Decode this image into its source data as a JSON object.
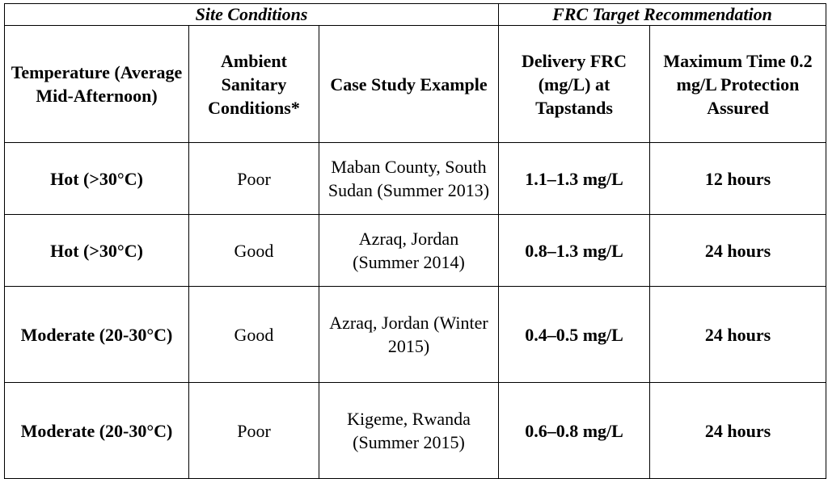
{
  "table": {
    "group_headers": {
      "site": "Site Conditions",
      "frc": "FRC Target Recommendation"
    },
    "column_headers": {
      "temperature": "Temperature (Average Mid-Afternoon)",
      "sanitary": "Ambient Sanitary Conditions*",
      "case_study": "Case Study Example",
      "delivery": "Delivery FRC (mg/L) at Tapstands",
      "max_time": "Maximum Time 0.2 mg/L Protection Assured"
    },
    "rows": [
      {
        "temperature": "Hot (>30°C)",
        "sanitary": "Poor",
        "case_study": "Maban County, South Sudan (Summer 2013)",
        "delivery": "1.1–1.3 mg/L",
        "max_time": "12 hours"
      },
      {
        "temperature": "Hot (>30°C)",
        "sanitary": "Good",
        "case_study": "Azraq, Jordan (Summer 2014)",
        "delivery": "0.8–1.3 mg/L",
        "max_time": "24 hours"
      },
      {
        "temperature": "Moderate (20-30°C)",
        "sanitary": "Good",
        "case_study": "Azraq, Jordan (Winter 2015)",
        "delivery": "0.4–0.5 mg/L",
        "max_time": "24 hours"
      },
      {
        "temperature": "Moderate (20-30°C)",
        "sanitary": "Poor",
        "case_study": "Kigeme, Rwanda (Summer 2015)",
        "delivery": "0.6–0.8 mg/L",
        "max_time": "24 hours"
      }
    ]
  }
}
